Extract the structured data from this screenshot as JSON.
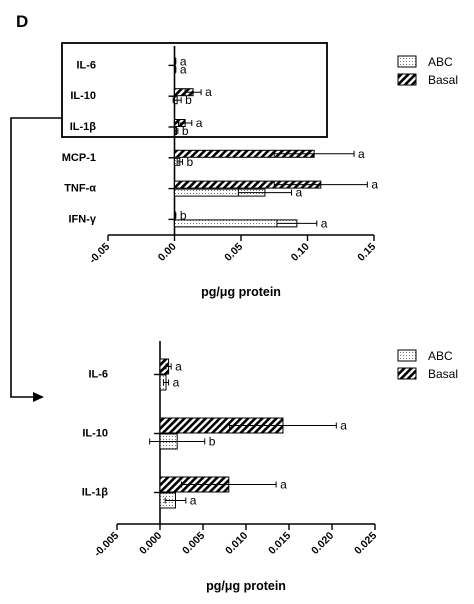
{
  "panel_label": "D",
  "legend": {
    "abc": "ABC",
    "basal": "Basal"
  },
  "chart_data": [
    {
      "type": "bar",
      "orientation": "horizontal",
      "categories": [
        "IL-6",
        "IL-10",
        "IL-1β",
        "MCP-1",
        "TNF-α",
        "IFN-γ"
      ],
      "series": [
        {
          "name": "Basal",
          "values": [
            0.0005,
            0.014,
            0.008,
            0.105,
            0.11,
            0.0005
          ],
          "errors": [
            0.0005,
            0.006,
            0.005,
            0.03,
            0.035,
            0.0005
          ]
        },
        {
          "name": "ABC",
          "values": [
            0.0005,
            0.002,
            0.0015,
            0.004,
            0.068,
            0.092
          ],
          "errors": [
            0.0005,
            0.003,
            0.001,
            0.002,
            0.02,
            0.015
          ]
        }
      ],
      "significance": {
        "Basal": [
          "a",
          "a",
          "a",
          "a",
          "a",
          "b"
        ],
        "ABC": [
          "a",
          "b",
          "b",
          "b",
          "a",
          "a"
        ]
      },
      "xlabel": "pg/μg protein",
      "xticks": [
        "-0.05",
        "0.00",
        "0.05",
        "0.10",
        "0.15"
      ],
      "xlim": [
        -0.05,
        0.15
      ]
    },
    {
      "type": "bar",
      "orientation": "horizontal",
      "categories": [
        "IL-6",
        "IL-10",
        "IL-1β"
      ],
      "series": [
        {
          "name": "Basal",
          "values": [
            0.001,
            0.0143,
            0.008
          ],
          "errors": [
            0.0003,
            0.0062,
            0.0055
          ]
        },
        {
          "name": "ABC",
          "values": [
            0.0007,
            0.002,
            0.0018
          ],
          "errors": [
            0.0003,
            0.0032,
            0.0012
          ]
        }
      ],
      "significance": {
        "Basal": [
          "a",
          "a",
          "a"
        ],
        "ABC": [
          "a",
          "b",
          "a"
        ]
      },
      "xlabel": "pg/μg protein",
      "xticks": [
        "-0.005",
        "0.000",
        "0.005",
        "0.010",
        "0.015",
        "0.020",
        "0.025"
      ],
      "xlim": [
        -0.005,
        0.025
      ]
    }
  ]
}
